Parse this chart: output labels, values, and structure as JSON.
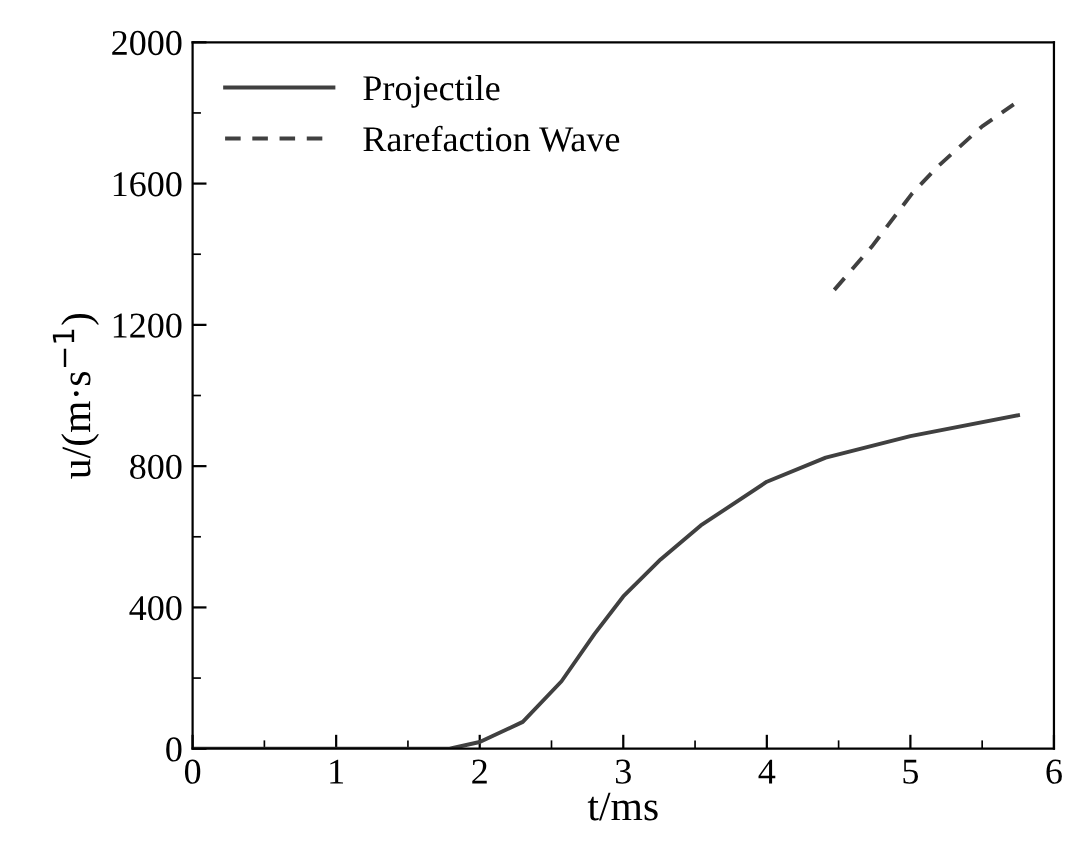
{
  "chart_data": {
    "type": "line",
    "xlabel": "t/ms",
    "ylabel": "u/(m·s$^{−1}$)",
    "xlim": [
      0,
      6
    ],
    "xticks": [
      0,
      1,
      2,
      3,
      4,
      5,
      6
    ],
    "ylim": [
      0,
      2000
    ],
    "yticks": [
      0,
      400,
      800,
      1200,
      1600,
      2000
    ],
    "grid": false,
    "legend": "top left",
    "marker": "none",
    "series": [
      {
        "name": "Projectile",
        "color": "#404040",
        "line_style": "solid",
        "x": [
          0,
          1.79,
          2.0,
          2.3,
          2.57,
          2.8,
          3.0,
          3.26,
          3.54,
          4.0,
          4.41,
          5.0,
          5.75
        ],
        "values": [
          0,
          0,
          19,
          76,
          191,
          325,
          431,
          536,
          632,
          756,
          824,
          885,
          944
        ]
      },
      {
        "name": "Rarefaction Wave",
        "color": "#404040",
        "line_style": "dashed",
        "x": [
          4.47,
          4.73,
          5.01,
          5.19,
          5.5,
          5.72
        ],
        "values": [
          1299,
          1421,
          1571,
          1648,
          1762,
          1824
        ]
      }
    ]
  }
}
